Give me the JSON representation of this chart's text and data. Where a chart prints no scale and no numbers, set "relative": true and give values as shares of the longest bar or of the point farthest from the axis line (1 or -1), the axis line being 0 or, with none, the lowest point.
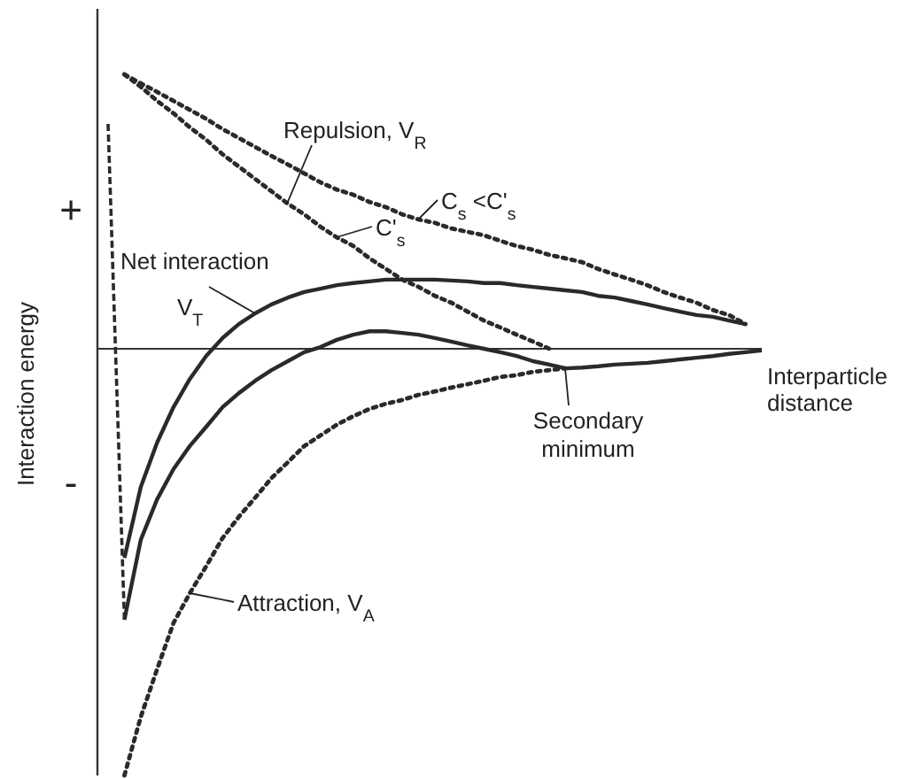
{
  "chart_data": {
    "type": "line",
    "relative": true,
    "categories": [
      null,
      null,
      null,
      null,
      null,
      null,
      null,
      null,
      null,
      null,
      null,
      null,
      null,
      null,
      null,
      null,
      null,
      null,
      null,
      null,
      null,
      null,
      null,
      null,
      null,
      null,
      null,
      null,
      null,
      null,
      null,
      null,
      null,
      null,
      null,
      null,
      null,
      null,
      null,
      null,
      null
    ],
    "xlabel": "Interparticle distance",
    "ylabel": "Interaction energy",
    "series": [
      {
        "color": "#2a2a2a",
        "line_style": "dotted",
        "values": [
          null,
          0.643,
          0.622,
          0.602,
          0.581,
          0.56,
          0.539,
          0.515,
          0.494,
          0.473,
          0.452,
          0.432,
          0.411,
          0.39,
          0.373,
          0.361,
          0.344,
          0.332,
          0.315,
          0.303,
          0.295,
          0.282,
          0.274,
          0.266,
          0.253,
          0.241,
          0.232,
          0.22,
          0.212,
          0.203,
          0.187,
          0.174,
          0.162,
          0.149,
          0.133,
          0.12,
          0.108,
          0.091,
          0.079,
          0.058,
          null
        ]
      },
      {
        "color": "#2a2a2a",
        "line_style": "dotted",
        "values": [
          null,
          0.643,
          0.614,
          0.581,
          0.552,
          0.519,
          0.49,
          0.456,
          0.427,
          0.398,
          0.369,
          0.34,
          0.315,
          0.286,
          0.261,
          0.241,
          0.212,
          0.187,
          0.162,
          0.145,
          0.124,
          0.108,
          0.087,
          0.066,
          0.05,
          0.033,
          0.017,
          0,
          null,
          null,
          null,
          null,
          null,
          null,
          null,
          null,
          null,
          null,
          null,
          null,
          null
        ]
      },
      {
        "color": "#2a2a2a",
        "line_style": "solid",
        "values": [
          null,
          -0.49,
          -0.324,
          -0.22,
          -0.137,
          -0.071,
          -0.017,
          0.025,
          0.058,
          0.083,
          0.104,
          0.12,
          0.133,
          0.141,
          0.149,
          0.154,
          0.158,
          0.162,
          0.162,
          0.162,
          0.162,
          0.16,
          0.158,
          0.154,
          0.154,
          0.149,
          0.145,
          0.141,
          0.137,
          0.133,
          0.124,
          0.12,
          0.112,
          0.104,
          0.095,
          0.087,
          0.079,
          0.075,
          0.066,
          0.058,
          null
        ]
      },
      {
        "color": "#2a2a2a",
        "line_style": "solid",
        "values": [
          null,
          -0.635,
          -0.448,
          -0.353,
          -0.282,
          -0.228,
          -0.183,
          -0.137,
          -0.104,
          -0.075,
          -0.05,
          -0.029,
          -0.008,
          0.004,
          0.021,
          0.033,
          0.041,
          0.041,
          0.037,
          0.033,
          0.025,
          0.017,
          0.008,
          0,
          -0.008,
          -0.017,
          -0.029,
          -0.037,
          -0.046,
          -0.044,
          -0.041,
          -0.037,
          -0.035,
          -0.033,
          -0.029,
          -0.025,
          -0.021,
          -0.017,
          -0.012,
          -0.008,
          -0.004
        ]
      },
      {
        "color": "#2a2a2a",
        "line_style": "dotted",
        "values": [
          null,
          -1,
          -0.863,
          -0.751,
          -0.643,
          -0.573,
          -0.51,
          -0.444,
          -0.394,
          -0.349,
          -0.303,
          -0.266,
          -0.228,
          -0.203,
          -0.178,
          -0.158,
          -0.141,
          -0.129,
          -0.12,
          -0.108,
          -0.1,
          -0.091,
          -0.083,
          -0.075,
          -0.066,
          -0.062,
          -0.054,
          -0.05,
          -0.046,
          null,
          null,
          null,
          null,
          null,
          null,
          null,
          null,
          null,
          null,
          null,
          null
        ]
      },
      {
        "color": "#2a2a2a",
        "line_style": "dashed",
        "values": [
          0.527,
          -0.635,
          null,
          null,
          null,
          null,
          null,
          null,
          null,
          null,
          null,
          null,
          null,
          null,
          null,
          null,
          null,
          null,
          null,
          null,
          null,
          null,
          null,
          null,
          null,
          null,
          null,
          null,
          null,
          null,
          null,
          null,
          null,
          null,
          null,
          null,
          null,
          null,
          null,
          null,
          null
        ]
      }
    ],
    "annotations": [
      {
        "text": "Repulsion, V$_{R}$",
        "y": 0.34
      },
      "C$_{s}$ <C'$_{s}$",
      "C'$_{s}$",
      "Net interaction",
      "V$_{T}$",
      {
        "text": "Secondary minimum",
        "y": -0.046
      },
      "Attraction, V$_{A}$",
      "+",
      "-"
    ]
  }
}
